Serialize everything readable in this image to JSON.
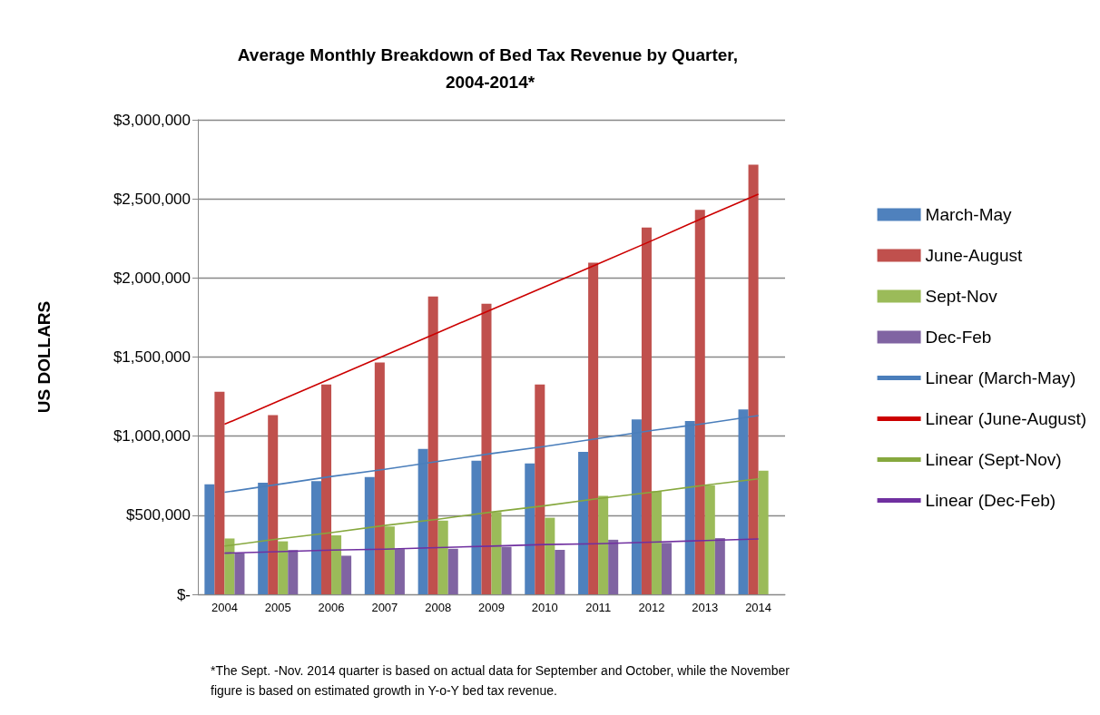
{
  "chart_data": {
    "type": "bar",
    "title": "Average Monthly Breakdown of Bed Tax Revenue by Quarter, 2004-2014*",
    "ylabel": "US DOLLARS",
    "categories": [
      "2004",
      "2005",
      "2006",
      "2007",
      "2008",
      "2009",
      "2010",
      "2011",
      "2012",
      "2013",
      "2014"
    ],
    "series": [
      {
        "name": "March-May",
        "color": "#4f81bd",
        "values": [
          696000,
          706000,
          716000,
          742000,
          919000,
          845000,
          827000,
          901000,
          1105000,
          1095000,
          1169000
        ]
      },
      {
        "name": "June-August",
        "color": "#c0504d",
        "values": [
          1280000,
          1133000,
          1327000,
          1466000,
          1883000,
          1837000,
          1327000,
          2097000,
          2319000,
          2431000,
          2716000
        ]
      },
      {
        "name": "Sept-Nov",
        "color": "#9bbb59",
        "values": [
          353000,
          335000,
          373000,
          429000,
          466000,
          520000,
          484000,
          623000,
          653000,
          688000,
          782000
        ]
      },
      {
        "name": "Dec-Feb",
        "color": "#8064a2",
        "values": [
          260000,
          280000,
          244000,
          286000,
          288000,
          300000,
          281000,
          345000,
          325000,
          355000,
          null
        ]
      },
      {
        "name": "Linear (March-May)",
        "type": "line",
        "color": "#4a7ebb",
        "values": [
          645000,
          695000,
          745000,
          790000,
          840000,
          890000,
          935000,
          985000,
          1035000,
          1080000,
          1130000
        ]
      },
      {
        "name": "Linear (June-August)",
        "type": "line",
        "color": "#cc0000",
        "values": [
          1075000,
          1220000,
          1365000,
          1510000,
          1655000,
          1800000,
          1945000,
          2090000,
          2235000,
          2385000,
          2530000
        ]
      },
      {
        "name": "Linear (Sept-Nov)",
        "type": "line",
        "color": "#86a83e",
        "values": [
          305000,
          350000,
          390000,
          435000,
          475000,
          520000,
          560000,
          605000,
          645000,
          690000,
          730000
        ]
      },
      {
        "name": "Linear (Dec-Feb)",
        "type": "line",
        "color": "#7030a0",
        "values": [
          260000,
          270000,
          280000,
          285000,
          295000,
          305000,
          315000,
          320000,
          330000,
          340000,
          350000
        ]
      }
    ],
    "ylim": [
      0,
      3000000
    ],
    "yticks": [
      {
        "value": 0,
        "label": "$-"
      },
      {
        "value": 500000,
        "label": "$500,000"
      },
      {
        "value": 1000000,
        "label": "$1,000,000"
      },
      {
        "value": 1500000,
        "label": "$1,500,000"
      },
      {
        "value": 2000000,
        "label": "$2,000,000"
      },
      {
        "value": 2500000,
        "label": "$2,500,000"
      },
      {
        "value": 3000000,
        "label": "$3,000,000"
      }
    ],
    "grid": "y",
    "legend": "right",
    "marker": "none",
    "annotations": [
      "*The Sept. -Nov. 2014 quarter is based on actual data for September and October, while the November figure is based on estimated growth in Y-o-Y bed tax revenue."
    ]
  }
}
